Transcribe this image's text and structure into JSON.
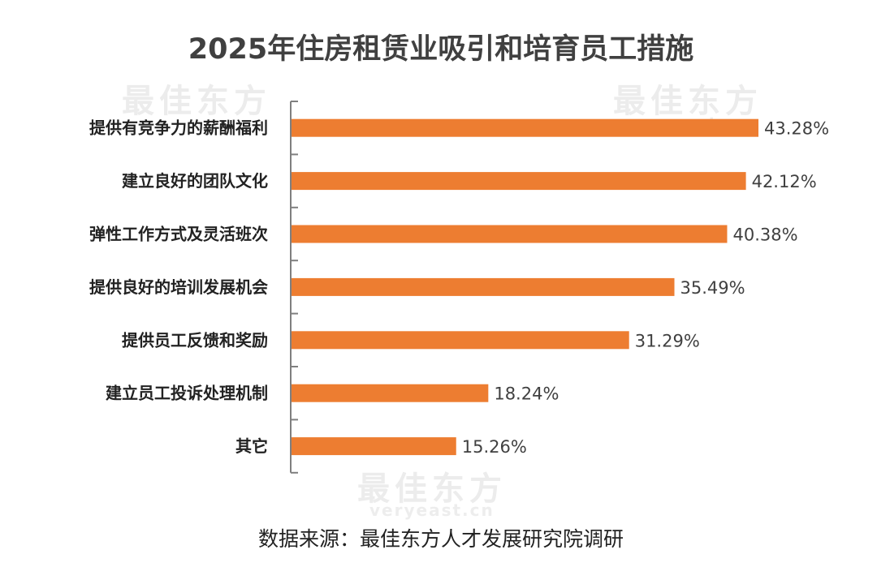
{
  "watermark": {
    "brand": "最佳东方",
    "domain": "veryeast.cn"
  },
  "chart_data": {
    "type": "bar",
    "orientation": "horizontal",
    "title": "2025年住房租赁业吸引和培育员工措施",
    "categories": [
      "提供有竞争力的薪酬福利",
      "建立良好的团队文化",
      "弹性工作方式及灵活班次",
      "提供良好的培训发展机会",
      "提供员工反馈和奖励",
      "建立员工投诉处理机制",
      "其它"
    ],
    "values": [
      43.28,
      42.12,
      40.38,
      35.49,
      31.29,
      18.24,
      15.26
    ],
    "labels": [
      "43.28%",
      "42.12%",
      "40.38%",
      "35.49%",
      "31.29%",
      "18.24%",
      "15.26%"
    ],
    "unit": "%",
    "xlim": [
      0,
      45
    ],
    "grid": false,
    "color": "#ED7D31",
    "source": "数据来源：最佳东方人才发展研究院调研"
  }
}
